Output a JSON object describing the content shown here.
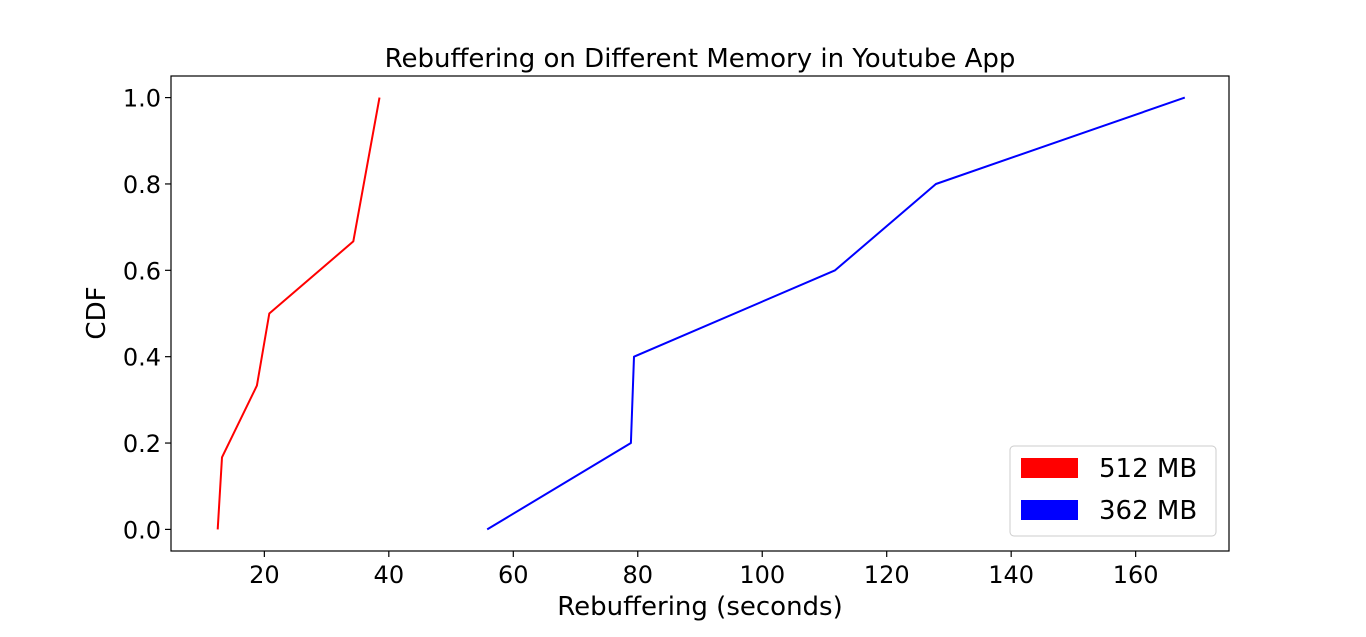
{
  "chart_data": {
    "type": "line",
    "title": "Rebuffering on Different Memory in Youtube App",
    "xlabel": "Rebuffering (seconds)",
    "ylabel": "CDF",
    "xlim": [
      5,
      175
    ],
    "ylim": [
      -0.05,
      1.05
    ],
    "xticks": [
      20,
      40,
      60,
      80,
      100,
      120,
      140,
      160
    ],
    "yticks": [
      0.0,
      0.2,
      0.4,
      0.6,
      0.8,
      1.0
    ],
    "xtick_labels": [
      "20",
      "40",
      "60",
      "80",
      "100",
      "120",
      "140",
      "160"
    ],
    "ytick_labels": [
      "0.0",
      "0.2",
      "0.4",
      "0.6",
      "0.8",
      "1.0"
    ],
    "grid": false,
    "legend_position": "bottom-right",
    "series": [
      {
        "name": "512 MB",
        "color": "#ff0000",
        "x": [
          12.5,
          13.2,
          18.8,
          20.8,
          34.3,
          38.5
        ],
        "y": [
          0.0,
          0.167,
          0.333,
          0.5,
          0.667,
          1.0
        ]
      },
      {
        "name": "362 MB",
        "color": "#0000ff",
        "x": [
          55.8,
          78.9,
          79.4,
          111.7,
          127.9,
          167.9
        ],
        "y": [
          0.0,
          0.2,
          0.4,
          0.6,
          0.8,
          1.0
        ]
      }
    ]
  }
}
